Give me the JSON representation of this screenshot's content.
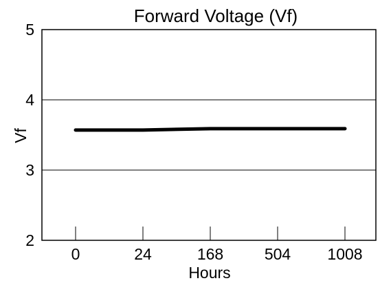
{
  "chart_data": {
    "type": "line",
    "title": "Forward Voltage (Vf)",
    "xlabel": "Hours",
    "ylabel": "Vf",
    "categories": [
      "0",
      "24",
      "168",
      "504",
      "1008"
    ],
    "series": [
      {
        "values": [
          3.57,
          3.57,
          3.59,
          3.59,
          3.59
        ]
      }
    ],
    "ylim": [
      2,
      5
    ],
    "yticks": [
      "2",
      "3",
      "4",
      "5"
    ],
    "grid": "horizontal",
    "legend": "none",
    "line_color": "#000000"
  }
}
